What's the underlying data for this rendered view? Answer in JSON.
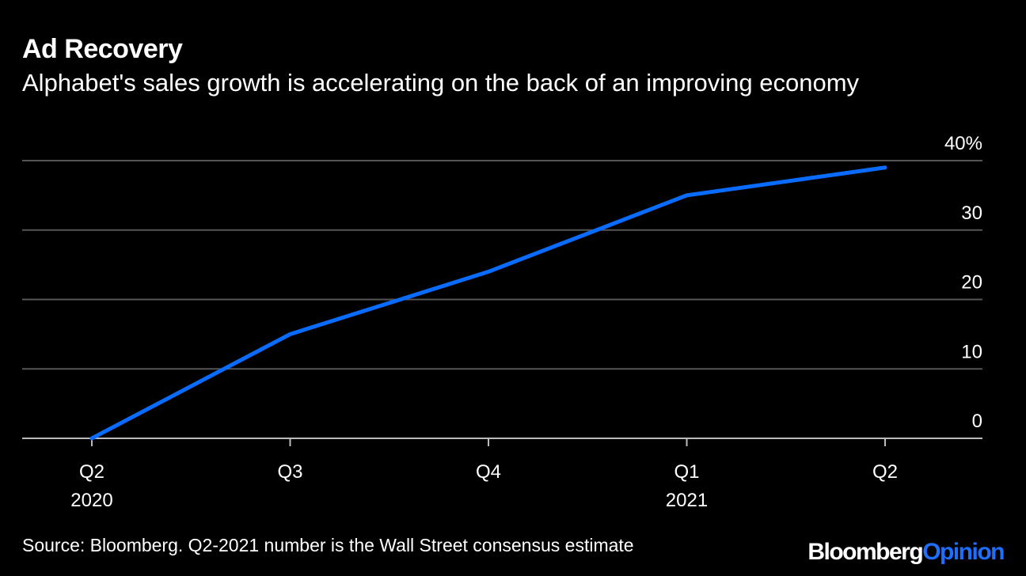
{
  "title": "Ad Recovery",
  "subtitle": "Alphabet's sales growth is accelerating on the back of an improving economy",
  "source": "Source: Bloomberg. Q2-2021 number is the Wall Street consensus estimate",
  "brand": {
    "part1": "Bloomberg",
    "part2": "Opinion"
  },
  "colors": {
    "background": "#000000",
    "line": "#0a6cff",
    "grid": "#555555",
    "text": "#ffffff",
    "brand_accent": "#1f6fff"
  },
  "chart_data": {
    "type": "line",
    "title": "Ad Recovery",
    "subtitle": "Alphabet's sales growth is accelerating on the back of an improving economy",
    "categories": [
      "Q2",
      "Q3",
      "Q4",
      "Q1",
      "Q2"
    ],
    "category_years": [
      "2020",
      "",
      "",
      "2021",
      ""
    ],
    "series": [
      {
        "values": [
          0,
          15,
          24,
          35,
          39
        ]
      }
    ],
    "y_ticks": [
      0,
      10,
      20,
      30,
      40
    ],
    "y_tick_labels": [
      "0",
      "10",
      "20",
      "30",
      "40%"
    ],
    "ylim": [
      0,
      40
    ],
    "y_axis_position": "right",
    "grid": true,
    "legend": "none"
  }
}
